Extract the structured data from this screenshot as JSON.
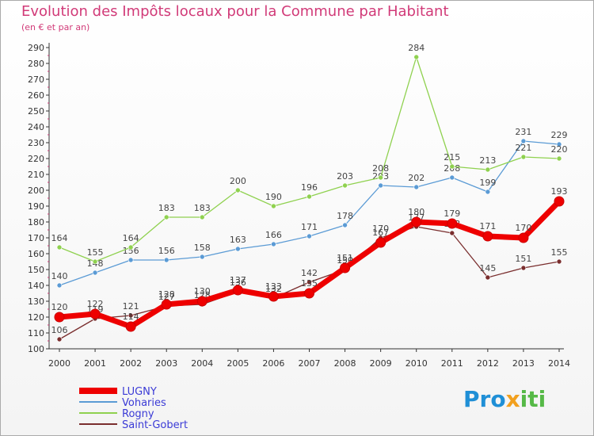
{
  "header": {
    "title": "Evolution des Impôts locaux pour la Commune par Habitant",
    "subtitle": "(en € et par an)"
  },
  "logo": {
    "text": "Proxiti",
    "part1": "Pro",
    "part2": "x",
    "part3": "iti"
  },
  "chart_data": {
    "type": "line",
    "title": "Evolution des Impôts locaux pour la Commune par Habitant",
    "subtitle": "(en € et par an)",
    "xlabel": "",
    "ylabel": "",
    "x": [
      2000,
      2001,
      2002,
      2003,
      2004,
      2005,
      2006,
      2007,
      2008,
      2009,
      2010,
      2011,
      2012,
      2013,
      2014
    ],
    "ylim": [
      100,
      290
    ],
    "ytick_step": 10,
    "grid": false,
    "legend_position": "bottom-left",
    "series": [
      {
        "name": "Vohariès",
        "legend_label": "Voharies",
        "color": "#5b9bd5",
        "values": [
          140,
          148,
          156,
          156,
          158,
          163,
          166,
          171,
          178,
          203,
          202,
          208,
          199,
          231,
          229
        ]
      },
      {
        "name": "Rogny",
        "legend_label": "Rogny",
        "color": "#8fd14f",
        "values": [
          164,
          155,
          164,
          183,
          183,
          200,
          190,
          196,
          203,
          208,
          284,
          215,
          213,
          221,
          220
        ]
      },
      {
        "name": "Saint-Gobert",
        "legend_label": "Saint-Gobert",
        "color": "#7a2e2e",
        "values": [
          106,
          119,
          121,
          127,
          128,
          136,
          132,
          142,
          150,
          170,
          177,
          173,
          145,
          151,
          155
        ]
      },
      {
        "name": "LUGNY",
        "legend_label": "LUGNY",
        "color": "#ee0000",
        "values": [
          120,
          122,
          114,
          128,
          130,
          137,
          133,
          135,
          151,
          167,
          180,
          179,
          171,
          170,
          193
        ]
      }
    ],
    "legend_order": [
      "LUGNY",
      "Vohariès",
      "Rogny",
      "Saint-Gobert"
    ],
    "label_color": "#444444",
    "legend_text_color": "#3b3bd6"
  }
}
